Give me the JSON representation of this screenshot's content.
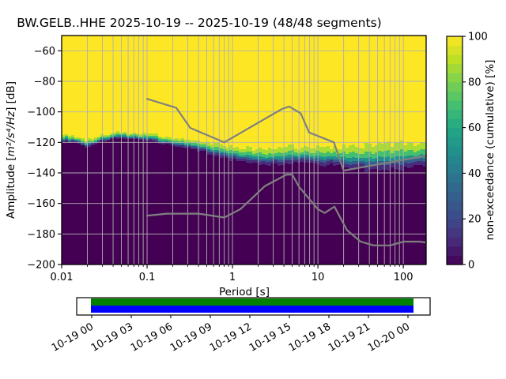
{
  "window": {
    "background": "#ffffff"
  },
  "chart_data": {
    "type": "heatmap",
    "title": "BW.GELB..HHE   2025-10-19 -- 2025-10-19  (48/48 segments)",
    "xlabel": "Period [s]",
    "ylabel_prefix": "Amplitude [",
    "ylabel_math": "m²/s⁴/Hz",
    "ylabel_suffix": "] [dB]",
    "x_scale": "log",
    "xlim": [
      0.01,
      185
    ],
    "ylim": [
      -200,
      -50
    ],
    "grid": true,
    "grid_color": "#b0b0b0",
    "background_color": "#fde725",
    "x_ticks": {
      "values": [
        0.01,
        0.1,
        1,
        10,
        100
      ],
      "labels": [
        "0.01",
        "0.1",
        "1",
        "10",
        "100"
      ]
    },
    "y_ticks": {
      "values": [
        -200,
        -180,
        -160,
        -140,
        -120,
        -100,
        -80,
        -60
      ],
      "labels": [
        "−200",
        "−180",
        "−160",
        "−140",
        "−120",
        "−100",
        "−80",
        "−60"
      ]
    },
    "colorbar": {
      "label": "non-exceedance (cumulative) [%]",
      "tick_values": [
        0,
        20,
        40,
        60,
        80,
        100
      ],
      "tick_labels": [
        "0",
        "20",
        "40",
        "60",
        "80",
        "100"
      ],
      "colormap": "viridis",
      "steps": 25
    },
    "viridis_stops": [
      "#440154",
      "#482878",
      "#3e4a89",
      "#355f8d",
      "#2a788e",
      "#21918c",
      "#22a884",
      "#44bf70",
      "#7ad151",
      "#bddf26",
      "#fde725"
    ],
    "cumulative_mesh": {
      "note": "50% non-exceedance amplitude (dB) and spread (dB) versus period (s)",
      "periods": [
        0.01,
        0.014,
        0.02,
        0.028,
        0.04,
        0.056,
        0.079,
        0.112,
        0.158,
        0.224,
        0.316,
        0.447,
        0.631,
        0.891,
        1.259,
        1.778,
        2.512,
        3.548,
        5.012,
        7.079,
        10,
        14.1,
        20,
        28.2,
        39.8,
        56.2,
        79.4,
        112,
        158,
        185
      ],
      "mid_db": [
        -117.5,
        -118.5,
        -121.5,
        -118,
        -116.5,
        -116,
        -116.5,
        -117.5,
        -119,
        -120.5,
        -122,
        -123.5,
        -125.5,
        -127.5,
        -129,
        -130,
        -130.5,
        -130,
        -129.5,
        -129.5,
        -130,
        -130.5,
        -131,
        -131.5,
        -131.5,
        -131.5,
        -131,
        -130.5,
        -129.5,
        -129
      ],
      "spread_db": [
        1,
        1,
        1.2,
        1,
        1,
        1,
        1,
        1.2,
        1.3,
        1.3,
        1.4,
        1.6,
        1.8,
        2,
        2.2,
        2.2,
        2.4,
        2.6,
        2.6,
        2.4,
        2.6,
        2.8,
        3,
        3.4,
        3.8,
        4,
        4,
        3.8,
        3.4,
        3.2
      ],
      "levels": [
        0.95,
        0.8,
        0.6,
        0.4,
        0.2,
        0.05
      ],
      "level_offsets_sigma": [
        1.65,
        0.84,
        0.25,
        -0.25,
        -0.84,
        -1.65
      ],
      "upper_scale": 1.4,
      "lower_scale": 0.9,
      "band_colors": [
        "#aadc32",
        "#44bf70",
        "#21918c",
        "#355f8d",
        "#472d7b"
      ],
      "floor_color": "#440154",
      "columns": 113
    },
    "noise_models": {
      "color": "#808080",
      "nhnm": [
        [
          0.1,
          -91.5
        ],
        [
          0.22,
          -97.4
        ],
        [
          0.32,
          -110.5
        ],
        [
          0.8,
          -120.0
        ],
        [
          3.8,
          -98.1
        ],
        [
          4.6,
          -96.5
        ],
        [
          6.3,
          -101.0
        ],
        [
          7.9,
          -113.5
        ],
        [
          15.4,
          -120.0
        ],
        [
          20.0,
          -138.5
        ],
        [
          185,
          -128.8
        ]
      ],
      "nlnm": [
        [
          0.1,
          -168.0
        ],
        [
          0.17,
          -166.7
        ],
        [
          0.4,
          -166.7
        ],
        [
          0.8,
          -169.2
        ],
        [
          1.24,
          -163.7
        ],
        [
          2.4,
          -148.6
        ],
        [
          4.3,
          -141.1
        ],
        [
          5.0,
          -141.1
        ],
        [
          6.0,
          -149.0
        ],
        [
          10.0,
          -163.8
        ],
        [
          12.0,
          -166.2
        ],
        [
          15.6,
          -162.1
        ],
        [
          21.9,
          -177.5
        ],
        [
          31.6,
          -185.0
        ],
        [
          45.0,
          -187.5
        ],
        [
          70.0,
          -187.5
        ],
        [
          101.0,
          -185.0
        ],
        [
          154.0,
          -185.0
        ],
        [
          185,
          -185.6
        ]
      ]
    },
    "coverage": {
      "tick_labels": [
        "10-19 00",
        "10-19 03",
        "10-19 06",
        "10-19 09",
        "10-19 12",
        "10-19 15",
        "10-19 18",
        "10-19 21",
        "10-20 00"
      ],
      "data_bar_color": "#008000",
      "extent_bar_color": "#0000ff",
      "frame_color": "#000000"
    }
  }
}
